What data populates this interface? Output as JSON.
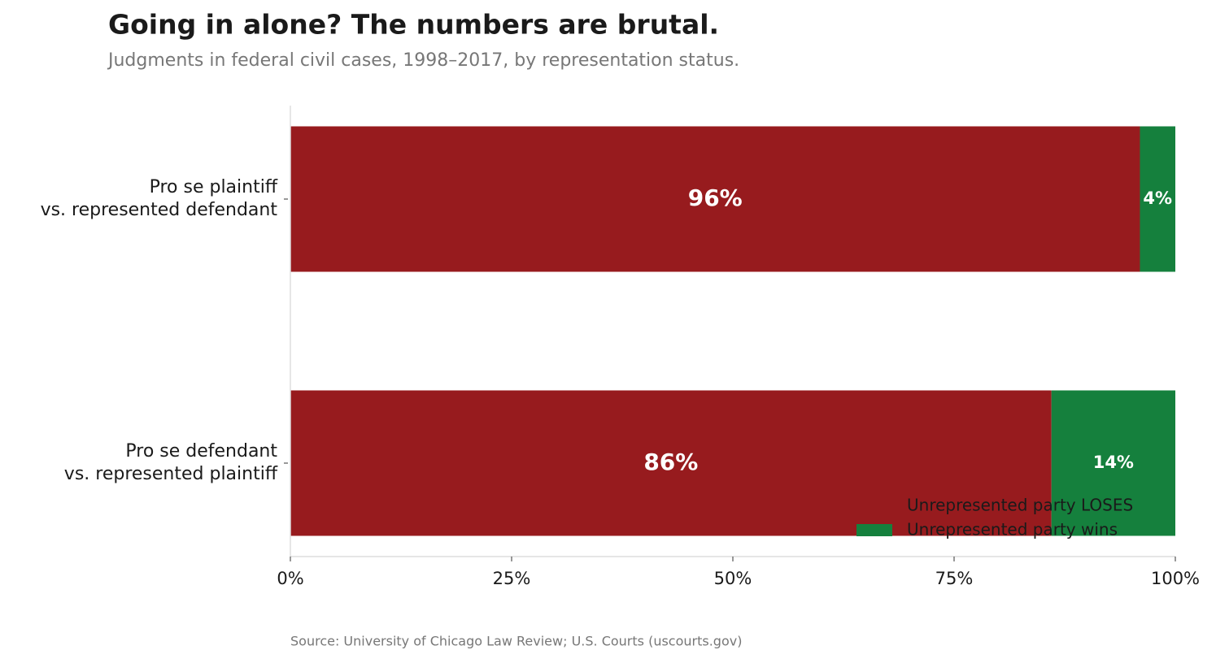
{
  "chart_data": {
    "type": "stacked-barh",
    "title": "Going in alone? The numbers are brutal.",
    "subtitle": "Judgments in federal civil cases, 1998–2017, by representation status.",
    "source": "Source: University of Chicago Law Review; U.S. Courts (uscourts.gov)",
    "categories": [
      [
        "Pro se plaintiff",
        "vs. represented defendant"
      ],
      [
        "Pro se defendant",
        "vs. represented plaintiff"
      ]
    ],
    "series": [
      {
        "name": "Unrepresented party LOSES",
        "color": "#971b1e",
        "values": [
          96,
          86
        ],
        "value_labels": [
          "96%",
          "86%"
        ]
      },
      {
        "name": "Unrepresented party wins",
        "color": "#15803d",
        "values": [
          4,
          14
        ],
        "value_labels": [
          "4%",
          "14%"
        ]
      }
    ],
    "xlim": [
      0,
      100
    ],
    "xticks": [
      {
        "value": 0,
        "label": "0%"
      },
      {
        "value": 25,
        "label": "25%"
      },
      {
        "value": 50,
        "label": "50%"
      },
      {
        "value": 75,
        "label": "75%"
      },
      {
        "value": 100,
        "label": "100%"
      }
    ],
    "legend": "lower right"
  }
}
